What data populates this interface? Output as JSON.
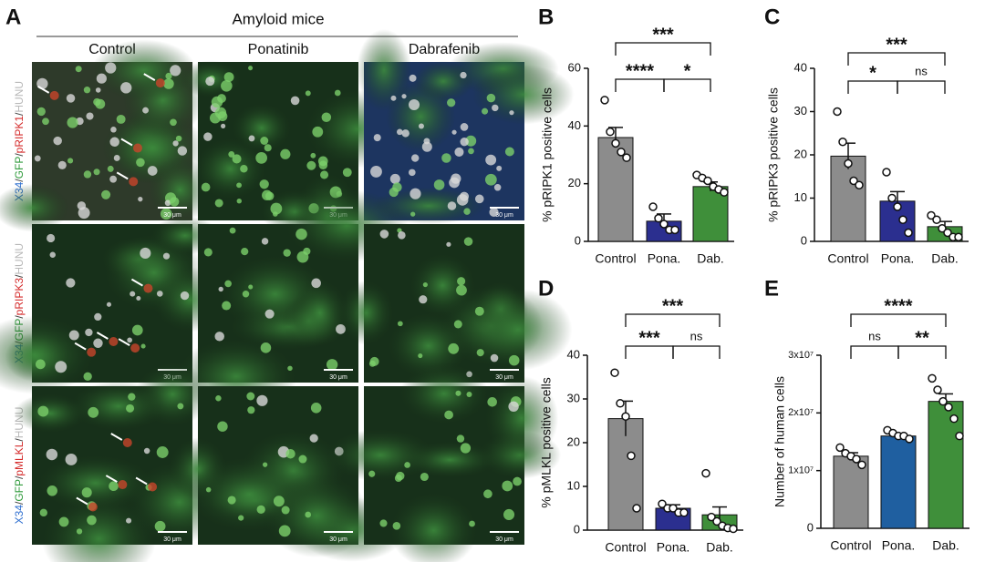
{
  "panel_a": {
    "label": "A",
    "group": "Amyloid mice",
    "columns": [
      "Control",
      "Ponatinib",
      "Dabrafenib"
    ],
    "rows": [
      [
        "X34",
        "/",
        "GFP",
        "/",
        "pRIPK1",
        "/",
        "HUNU"
      ],
      [
        "X34",
        "/",
        "GFP",
        "/",
        "pRIPK3",
        "/",
        "HUNU"
      ],
      [
        "X34",
        "/",
        "GFP",
        "/",
        "pMLKL",
        "/",
        "HUNU"
      ]
    ],
    "row_colors": [
      "#2f6fd0",
      "#444",
      "#2e9a3a",
      "#444",
      "#d42a2a",
      "#444",
      "#b8b8b8"
    ],
    "scale_bar": "30 μm"
  },
  "chart_data": [
    {
      "type": "bar",
      "panel": "B",
      "ylabel": "% pRIPK1 positive cells",
      "categories": [
        "Control",
        "Pona.",
        "Dab."
      ],
      "values": [
        36,
        7,
        19
      ],
      "errors": [
        3.5,
        2.5,
        1.6
      ],
      "colors": [
        "#8c8c8c",
        "#2b2f8f",
        "#3f8f3a"
      ],
      "points": [
        [
          49,
          38,
          34,
          31,
          29
        ],
        [
          12,
          8,
          6,
          4,
          4
        ],
        [
          23,
          22,
          21,
          19,
          18,
          17
        ]
      ],
      "ylim": [
        0,
        60
      ],
      "yticks": [
        0,
        20,
        40,
        60
      ],
      "annotations": [
        {
          "label": "***",
          "pair": [
            0,
            2
          ]
        },
        {
          "label": "****",
          "pair": [
            0,
            1
          ]
        },
        {
          "label": "*",
          "pair": [
            1,
            2
          ]
        }
      ]
    },
    {
      "type": "bar",
      "panel": "C",
      "ylabel": "% pRIPK3 positive cells",
      "categories": [
        "Control",
        "Pona.",
        "Dab."
      ],
      "values": [
        19.7,
        9.3,
        3.4
      ],
      "errors": [
        3,
        2.2,
        1.2
      ],
      "colors": [
        "#8c8c8c",
        "#2b2f8f",
        "#3f8f3a"
      ],
      "points": [
        [
          30,
          23,
          18,
          14,
          13
        ],
        [
          16,
          10,
          8,
          5,
          2
        ],
        [
          6,
          5,
          3,
          2,
          1,
          1
        ]
      ],
      "ylim": [
        0,
        40
      ],
      "yticks": [
        0,
        10,
        20,
        30,
        40
      ],
      "annotations": [
        {
          "label": "***",
          "pair": [
            0,
            2
          ]
        },
        {
          "label": "*",
          "pair": [
            0,
            1
          ]
        },
        {
          "label": "ns",
          "pair": [
            1,
            2
          ]
        }
      ]
    },
    {
      "type": "bar",
      "panel": "D",
      "ylabel": "% pMLKL positive cells",
      "categories": [
        "Control",
        "Pona.",
        "Dab."
      ],
      "values": [
        25.5,
        5,
        3.5
      ],
      "errors": [
        4,
        0.8,
        1.8
      ],
      "colors": [
        "#8c8c8c",
        "#2b2f8f",
        "#3f8f3a"
      ],
      "points": [
        [
          36,
          29,
          26,
          17,
          5
        ],
        [
          6,
          5,
          5,
          4,
          4
        ],
        [
          13,
          3,
          2,
          1,
          0.5,
          0.3
        ]
      ],
      "ylim": [
        0,
        40
      ],
      "yticks": [
        0,
        10,
        20,
        30,
        40
      ],
      "annotations": [
        {
          "label": "***",
          "pair": [
            0,
            2
          ]
        },
        {
          "label": "***",
          "pair": [
            0,
            1
          ]
        },
        {
          "label": "ns",
          "pair": [
            1,
            2
          ]
        }
      ]
    },
    {
      "type": "bar",
      "panel": "E",
      "ylabel": "Number of human cells",
      "categories": [
        "Control",
        "Pona.",
        "Dab."
      ],
      "values": [
        12500000,
        16000000,
        22000000
      ],
      "errors": [
        600000,
        300000,
        1300000
      ],
      "colors": [
        "#8c8c8c",
        "#1f5fa0",
        "#3f8f3a"
      ],
      "points": [
        [
          14000000,
          13000000,
          12500000,
          12000000,
          11000000
        ],
        [
          17000000,
          16500000,
          16000000,
          16000000,
          15500000
        ],
        [
          26000000,
          24000000,
          22000000,
          21000000,
          19000000,
          16000000
        ]
      ],
      "ylim": [
        0,
        30000000
      ],
      "yticks": [
        0,
        {
          "value": 10000000,
          "label": "1x10⁷"
        },
        {
          "value": 20000000,
          "label": "2x10⁷"
        },
        {
          "value": 30000000,
          "label": "3x10⁷"
        }
      ],
      "annotations": [
        {
          "label": "****",
          "pair": [
            0,
            2
          ]
        },
        {
          "label": "ns",
          "pair": [
            0,
            1
          ]
        },
        {
          "label": "**",
          "pair": [
            1,
            2
          ]
        }
      ]
    }
  ]
}
